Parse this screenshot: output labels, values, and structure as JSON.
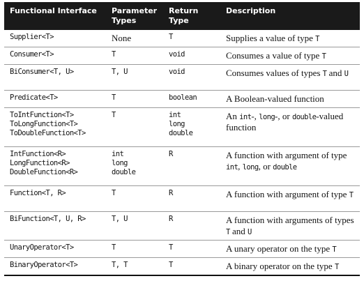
{
  "headers": {
    "col1": "Functional Interface",
    "col2a": "Parameter",
    "col2b": "Types",
    "col3": "Return Type",
    "col4": "Description"
  },
  "rows": [
    {
      "iface": [
        "Supplier<T>"
      ],
      "params": [
        "None"
      ],
      "ret": [
        "T"
      ],
      "desc": "Supplies a value of type T"
    },
    {
      "iface": [
        "Consumer<T>"
      ],
      "params": [
        "T"
      ],
      "ret": [
        "void"
      ],
      "desc": "Consumes a value of type T"
    },
    {
      "iface": [
        "BiConsumer<T, U>"
      ],
      "params": [
        "T, U"
      ],
      "ret": [
        "void"
      ],
      "desc": "Consumes values of types T and U"
    },
    {
      "iface": [
        "Predicate<T>"
      ],
      "params": [
        "T"
      ],
      "ret": [
        "boolean"
      ],
      "desc": "A Boolean-valued function"
    },
    {
      "iface": [
        "ToIntFunction<T>",
        "ToLongFunction<T>",
        "ToDoubleFunction<T>"
      ],
      "params": [
        "T"
      ],
      "ret": [
        "int",
        "long",
        "double"
      ],
      "desc": "An int-, long-, or double-valued function"
    },
    {
      "iface": [
        "IntFunction<R>",
        "LongFunction<R>",
        "DoubleFunction<R>"
      ],
      "params": [
        "int",
        "long",
        "double"
      ],
      "ret": [
        "R"
      ],
      "desc": "A function with argument of type int, long, or double"
    },
    {
      "iface": [
        "Function<T, R>"
      ],
      "params": [
        "T"
      ],
      "ret": [
        "R"
      ],
      "desc": "A function with argument of type T"
    },
    {
      "iface": [
        "BiFunction<T, U, R>"
      ],
      "params": [
        "T, U"
      ],
      "ret": [
        "R"
      ],
      "desc": "A function with arguments of types T and U"
    },
    {
      "iface": [
        "UnaryOperator<T>"
      ],
      "params": [
        "T"
      ],
      "ret": [
        "T"
      ],
      "desc": "A unary operator on the type T"
    },
    {
      "iface": [
        "BinaryOperator<T>"
      ],
      "params": [
        "T, T"
      ],
      "ret": [
        "T"
      ],
      "desc": "A binary operator on the type T"
    }
  ]
}
